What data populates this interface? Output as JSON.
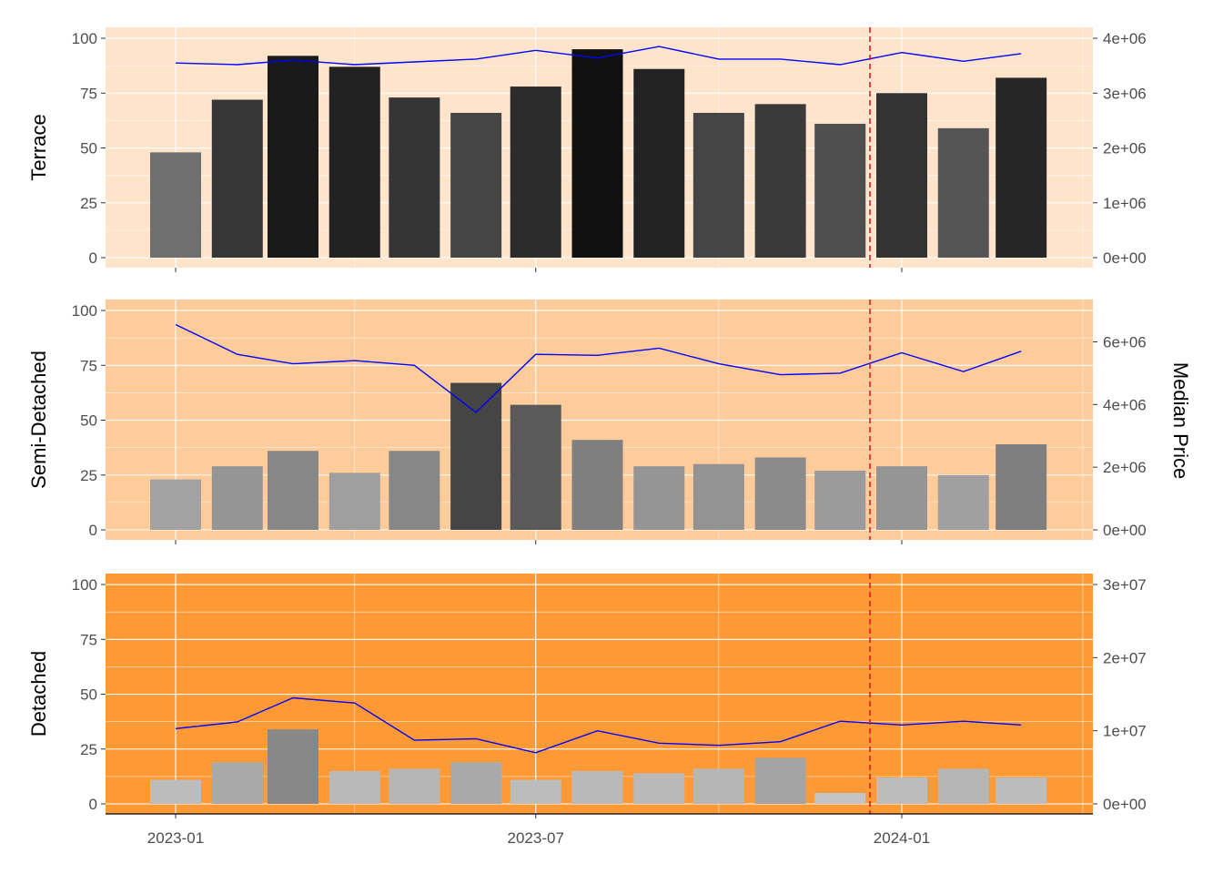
{
  "chart_data": {
    "type": "bar",
    "x_tick_labels": [
      "2023-01",
      "2023-07",
      "2024-01"
    ],
    "x_tick_dates": [
      "2023-01-01",
      "2023-07-01",
      "2024-01-01"
    ],
    "months": [
      "2023-01",
      "2023-02",
      "2023-03",
      "2023-04",
      "2023-05",
      "2023-06",
      "2023-07",
      "2023-08",
      "2023-09",
      "2023-10",
      "2023-11",
      "2023-12",
      "2024-01",
      "2024-02",
      "2024-03"
    ],
    "reference_line_date": "2023-12-16",
    "reference_line_color": "#e41a1c",
    "price_line_color": "#0000ff",
    "secondary_axis_title": "Median Price",
    "grid": true,
    "panels": [
      {
        "label": "Terrace",
        "background": "#ffe4cc",
        "ylim": [
          0,
          105
        ],
        "y_ticks": [
          "0",
          "25",
          "50",
          "75",
          "100"
        ],
        "sales": [
          48,
          72,
          92,
          87,
          73,
          66,
          78,
          95,
          86,
          66,
          70,
          61,
          75,
          59,
          82
        ],
        "bar_colors": [
          "#6f6f6f",
          "#363636",
          "#1a1a1a",
          "#222222",
          "#353535",
          "#454545",
          "#2c2c2c",
          "#111111",
          "#232323",
          "#454545",
          "#3a3a3a",
          "#4f4f4f",
          "#333333",
          "#555555",
          "#262626"
        ],
        "price_ylim": [
          0,
          4200000
        ],
        "price_ticks": [
          "0e+00",
          "1e+06",
          "2e+06",
          "3e+06",
          "4e+06"
        ],
        "median_price": [
          3550000,
          3520000,
          3600000,
          3520000,
          3570000,
          3620000,
          3780000,
          3640000,
          3850000,
          3620000,
          3620000,
          3520000,
          3740000,
          3580000,
          3720000
        ]
      },
      {
        "label": "Semi-Detached",
        "background": "#fdcc9a",
        "ylim": [
          0,
          105
        ],
        "y_ticks": [
          "0",
          "25",
          "50",
          "75",
          "100"
        ],
        "sales": [
          23,
          29,
          36,
          26,
          36,
          67,
          57,
          41,
          29,
          30,
          33,
          27,
          29,
          25,
          39
        ],
        "bar_colors": [
          "#a2a2a2",
          "#959595",
          "#878787",
          "#9f9f9f",
          "#878787",
          "#454545",
          "#5a5a5a",
          "#7f7f7f",
          "#959595",
          "#939393",
          "#8b8b8b",
          "#9b9b9b",
          "#959595",
          "#a0a0a0",
          "#7f7f7f"
        ],
        "price_ylim": [
          0,
          7350000
        ],
        "price_ticks": [
          "0e+00",
          "2e+06",
          "4e+06",
          "6e+06"
        ],
        "median_price": [
          6550000,
          5600000,
          5300000,
          5400000,
          5250000,
          3750000,
          5600000,
          5570000,
          5800000,
          5300000,
          4950000,
          5000000,
          5650000,
          5050000,
          5700000
        ]
      },
      {
        "label": "Detached",
        "background": "#fe9a35",
        "ylim": [
          0,
          105
        ],
        "y_ticks": [
          "0",
          "25",
          "50",
          "75",
          "100"
        ],
        "sales": [
          11,
          19,
          34,
          15,
          16,
          19,
          11,
          15,
          14,
          16,
          21,
          5,
          12,
          16,
          12
        ],
        "bar_colors": [
          "#bcbcbc",
          "#a9a9a9",
          "#888888",
          "#b9b9b9",
          "#b6b6b6",
          "#a9a9a9",
          "#bcbcbc",
          "#b9b9b9",
          "#b9b9b9",
          "#b6b6b6",
          "#a4a4a4",
          "#c4c4c4",
          "#bcbcbc",
          "#b6b6b6",
          "#bcbcbc"
        ],
        "price_ylim": [
          0,
          31500000
        ],
        "price_ticks": [
          "0e+00",
          "1e+07",
          "2e+07",
          "3e+07"
        ],
        "median_price": [
          10300000,
          11200000,
          14500000,
          13800000,
          8700000,
          8900000,
          7000000,
          10000000,
          8300000,
          8000000,
          8500000,
          11300000,
          10800000,
          11300000,
          10800000
        ]
      }
    ]
  }
}
